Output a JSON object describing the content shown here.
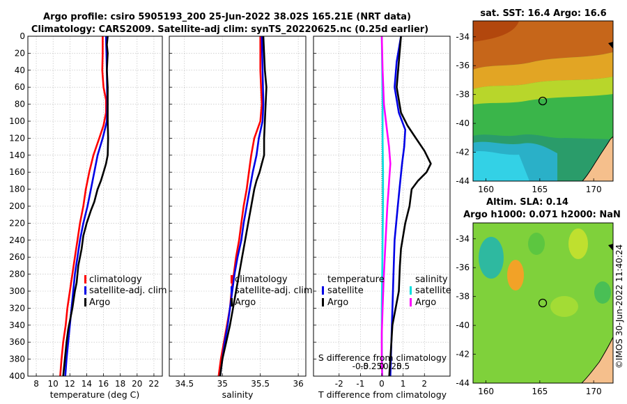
{
  "title_line1": "Argo profile: csiro 5905193_200 25-Jun-2022 38.02S 165.21E (NRT data)",
  "title_line2": "Climatology: CARS2009. Satellite-adj clim: synTS_20220625.nc (0.25d earlier)",
  "footer_stamp": "©IMOS 30-Jun-2022 11:40:24",
  "colors": {
    "red": "#ff0000",
    "blue": "#0000e6",
    "black": "#000000",
    "cyan": "#00e0e0",
    "magenta": "#ff00ff"
  },
  "chart_data": [
    {
      "type": "line",
      "name": "temperature-panel",
      "xlabel": "temperature (deg C)",
      "xlim": [
        7,
        23
      ],
      "ylim": [
        400,
        0
      ],
      "xticks": [
        8,
        10,
        12,
        14,
        16,
        18,
        20,
        22
      ],
      "yticks": [
        0,
        20,
        40,
        60,
        80,
        100,
        120,
        140,
        160,
        180,
        200,
        220,
        240,
        260,
        280,
        300,
        320,
        340,
        360,
        380,
        400
      ],
      "legend": [
        "climatology",
        "satellite-adj. clim",
        "Argo"
      ],
      "series": [
        {
          "name": "climatology",
          "color": "red",
          "points": [
            [
              15.9,
              0
            ],
            [
              15.9,
              20
            ],
            [
              15.85,
              40
            ],
            [
              16.0,
              60
            ],
            [
              16.3,
              75
            ],
            [
              16.3,
              90
            ],
            [
              16.0,
              105
            ],
            [
              15.5,
              120
            ],
            [
              14.8,
              140
            ],
            [
              14.3,
              160
            ],
            [
              13.9,
              180
            ],
            [
              13.6,
              200
            ],
            [
              13.2,
              220
            ],
            [
              12.9,
              240
            ],
            [
              12.6,
              260
            ],
            [
              12.3,
              280
            ],
            [
              12.0,
              300
            ],
            [
              11.7,
              320
            ],
            [
              11.5,
              340
            ],
            [
              11.2,
              360
            ],
            [
              11.0,
              380
            ],
            [
              10.85,
              400
            ]
          ]
        },
        {
          "name": "satellite-adj. clim",
          "color": "blue",
          "points": [
            [
              16.3,
              0
            ],
            [
              16.4,
              40
            ],
            [
              16.45,
              80
            ],
            [
              16.4,
              100
            ],
            [
              15.9,
              120
            ],
            [
              15.3,
              140
            ],
            [
              14.9,
              160
            ],
            [
              14.5,
              180
            ],
            [
              14.1,
              200
            ],
            [
              13.6,
              220
            ],
            [
              13.2,
              240
            ],
            [
              12.9,
              260
            ],
            [
              12.6,
              280
            ],
            [
              12.4,
              300
            ],
            [
              12.2,
              320
            ],
            [
              12.0,
              340
            ],
            [
              11.8,
              360
            ],
            [
              11.6,
              380
            ],
            [
              11.45,
              400
            ]
          ]
        },
        {
          "name": "Argo",
          "color": "black",
          "points": [
            [
              16.5,
              0
            ],
            [
              16.4,
              10
            ],
            [
              16.5,
              20
            ],
            [
              16.4,
              40
            ],
            [
              16.5,
              60
            ],
            [
              16.5,
              100
            ],
            [
              16.55,
              120
            ],
            [
              16.5,
              140
            ],
            [
              16.3,
              150
            ],
            [
              16.0,
              160
            ],
            [
              15.7,
              170
            ],
            [
              15.3,
              180
            ],
            [
              14.9,
              195
            ],
            [
              14.5,
              205
            ],
            [
              14.0,
              220
            ],
            [
              13.6,
              235
            ],
            [
              13.4,
              250
            ],
            [
              13.0,
              270
            ],
            [
              12.8,
              290
            ],
            [
              12.6,
              300
            ],
            [
              12.3,
              320
            ],
            [
              12.0,
              335
            ],
            [
              11.8,
              345
            ],
            [
              11.6,
              360
            ],
            [
              11.4,
              380
            ],
            [
              11.2,
              400
            ]
          ]
        }
      ]
    },
    {
      "type": "line",
      "name": "salinity-panel",
      "xlabel": "salinity",
      "xlim": [
        34.3,
        36.1
      ],
      "ylim": [
        400,
        0
      ],
      "xticks": [
        34.5,
        35,
        35.5,
        36
      ],
      "legend": [
        "climatology",
        "satellite-adj. clim",
        "Argo"
      ],
      "series": [
        {
          "name": "climatology",
          "color": "red",
          "points": [
            [
              35.5,
              0
            ],
            [
              35.5,
              40
            ],
            [
              35.52,
              80
            ],
            [
              35.5,
              100
            ],
            [
              35.42,
              120
            ],
            [
              35.38,
              140
            ],
            [
              35.35,
              160
            ],
            [
              35.32,
              180
            ],
            [
              35.28,
              200
            ],
            [
              35.25,
              220
            ],
            [
              35.22,
              240
            ],
            [
              35.18,
              260
            ],
            [
              35.15,
              280
            ],
            [
              35.12,
              300
            ],
            [
              35.1,
              320
            ],
            [
              35.06,
              340
            ],
            [
              35.02,
              360
            ],
            [
              34.98,
              380
            ],
            [
              34.95,
              400
            ]
          ]
        },
        {
          "name": "satellite-adj. clim",
          "color": "blue",
          "points": [
            [
              35.52,
              0
            ],
            [
              35.53,
              40
            ],
            [
              35.54,
              80
            ],
            [
              35.53,
              100
            ],
            [
              35.48,
              120
            ],
            [
              35.45,
              140
            ],
            [
              35.4,
              160
            ],
            [
              35.36,
              180
            ],
            [
              35.32,
              200
            ],
            [
              35.28,
              220
            ],
            [
              35.25,
              240
            ],
            [
              35.2,
              260
            ],
            [
              35.16,
              280
            ],
            [
              35.13,
              300
            ],
            [
              35.1,
              320
            ],
            [
              35.07,
              340
            ],
            [
              35.03,
              360
            ],
            [
              35.0,
              380
            ],
            [
              34.97,
              400
            ]
          ]
        },
        {
          "name": "Argo",
          "color": "black",
          "points": [
            [
              35.54,
              0
            ],
            [
              35.55,
              20
            ],
            [
              35.56,
              40
            ],
            [
              35.58,
              60
            ],
            [
              35.57,
              80
            ],
            [
              35.56,
              100
            ],
            [
              35.55,
              120
            ],
            [
              35.55,
              140
            ],
            [
              35.52,
              150
            ],
            [
              35.49,
              160
            ],
            [
              35.45,
              170
            ],
            [
              35.42,
              180
            ],
            [
              35.38,
              200
            ],
            [
              35.34,
              220
            ],
            [
              35.3,
              240
            ],
            [
              35.26,
              260
            ],
            [
              35.22,
              280
            ],
            [
              35.18,
              300
            ],
            [
              35.14,
              320
            ],
            [
              35.1,
              340
            ],
            [
              35.05,
              360
            ],
            [
              35.0,
              380
            ],
            [
              34.97,
              400
            ]
          ]
        }
      ]
    },
    {
      "type": "line",
      "name": "difference-panel",
      "xlabel": "T difference from climatology",
      "xlabel_top": "S difference from climatology",
      "xlim": [
        -3.2,
        3.2
      ],
      "ylim": [
        400,
        0
      ],
      "xticks": [
        -2,
        -1,
        0,
        1,
        2
      ],
      "xtick_labels": [
        "-2",
        "-1",
        "0",
        "1",
        "2"
      ],
      "sticks": [
        -0.5,
        -0.25,
        0,
        0.25,
        0.5
      ],
      "stick_labels": [
        "-0.5",
        "-0.25",
        "0",
        "0.25",
        "0.5"
      ],
      "legend_t": [
        "temperature",
        "satellite",
        "Argo"
      ],
      "legend_s": [
        "salinity",
        "satellite",
        "Argo"
      ],
      "series": [
        {
          "name": "temperature satellite",
          "color": "blue",
          "points": [
            [
              0.9,
              0
            ],
            [
              0.7,
              30
            ],
            [
              0.6,
              60
            ],
            [
              0.8,
              90
            ],
            [
              1.1,
              110
            ],
            [
              1.05,
              130
            ],
            [
              0.95,
              150
            ],
            [
              0.85,
              175
            ],
            [
              0.75,
              200
            ],
            [
              0.6,
              240
            ],
            [
              0.55,
              280
            ],
            [
              0.5,
              320
            ],
            [
              0.45,
              360
            ],
            [
              0.4,
              400
            ]
          ]
        },
        {
          "name": "temperature Argo",
          "color": "black",
          "points": [
            [
              0.9,
              0
            ],
            [
              0.8,
              30
            ],
            [
              0.7,
              60
            ],
            [
              0.9,
              90
            ],
            [
              1.2,
              105
            ],
            [
              1.6,
              120
            ],
            [
              2.0,
              135
            ],
            [
              2.3,
              150
            ],
            [
              2.1,
              160
            ],
            [
              1.7,
              170
            ],
            [
              1.4,
              180
            ],
            [
              1.3,
              200
            ],
            [
              1.1,
              220
            ],
            [
              0.9,
              250
            ],
            [
              0.85,
              270
            ],
            [
              0.8,
              300
            ],
            [
              0.65,
              320
            ],
            [
              0.5,
              340
            ],
            [
              0.45,
              360
            ],
            [
              0.4,
              380
            ],
            [
              0.35,
              400
            ]
          ]
        },
        {
          "name": "salinity satellite",
          "color": "cyan",
          "points": [
            [
              0.0,
              0
            ],
            [
              0.01,
              40
            ],
            [
              0.02,
              80
            ],
            [
              0.02,
              120
            ],
            [
              0.03,
              160
            ],
            [
              0.03,
              200
            ],
            [
              0.02,
              240
            ],
            [
              0.01,
              280
            ],
            [
              0.0,
              320
            ],
            [
              0.0,
              360
            ],
            [
              0.01,
              400
            ]
          ]
        },
        {
          "name": "salinity Argo",
          "color": "magenta",
          "points": [
            [
              0.0,
              0
            ],
            [
              0.02,
              40
            ],
            [
              0.05,
              80
            ],
            [
              0.12,
              110
            ],
            [
              0.17,
              130
            ],
            [
              0.2,
              150
            ],
            [
              0.18,
              165
            ],
            [
              0.16,
              180
            ],
            [
              0.13,
              200
            ],
            [
              0.1,
              230
            ],
            [
              0.07,
              260
            ],
            [
              0.04,
              290
            ],
            [
              0.02,
              320
            ],
            [
              0.0,
              350
            ],
            [
              0.0,
              380
            ],
            [
              0.01,
              400
            ]
          ]
        }
      ]
    },
    {
      "type": "heatmap",
      "name": "sst-map",
      "title": "sat. SST: 16.4 Argo: 16.6",
      "xticks": [
        160,
        165,
        170
      ],
      "yticks": [
        -34,
        -36,
        -38,
        -40,
        -42,
        -44
      ],
      "xlim": [
        158.8,
        171.8
      ],
      "ylim": [
        -44,
        -32.9
      ],
      "marker": [
        165.21,
        -38.02
      ]
    },
    {
      "type": "heatmap",
      "name": "sla-map",
      "title_line1": "Altim. SLA: 0.14",
      "title_line2": "Argo h1000: 0.071 h2000: NaN",
      "xticks": [
        160,
        165,
        170
      ],
      "yticks": [
        -34,
        -36,
        -38,
        -40,
        -42,
        -44
      ],
      "xlim": [
        158.8,
        171.8
      ],
      "ylim": [
        -44,
        -32.9
      ],
      "marker": [
        165.21,
        -38.02
      ]
    }
  ]
}
